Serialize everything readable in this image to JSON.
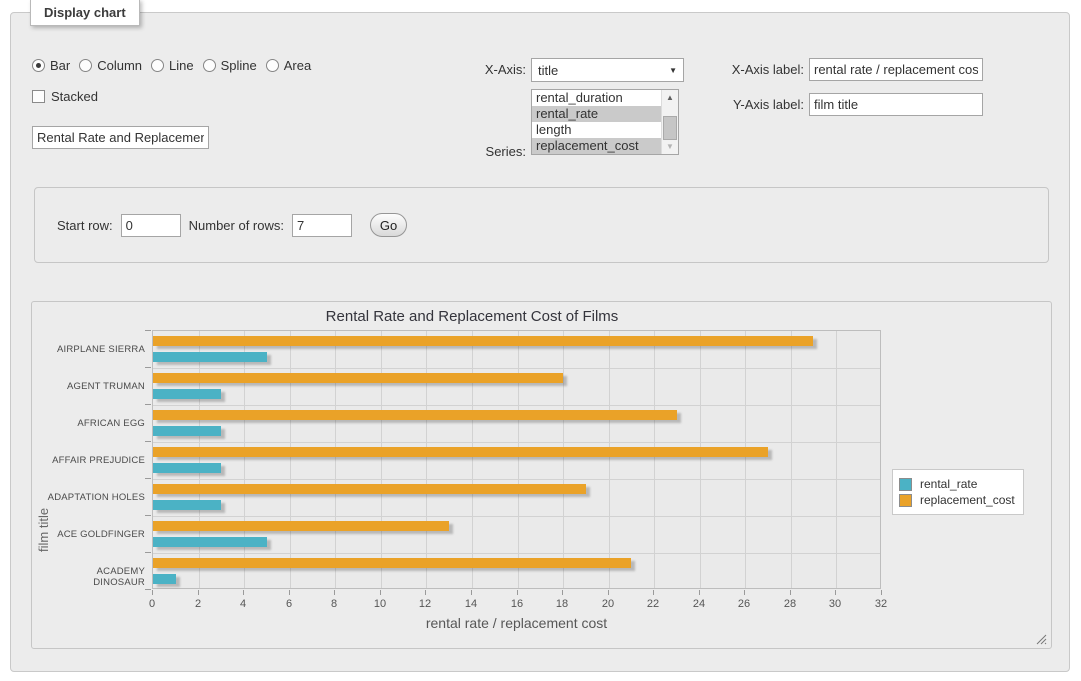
{
  "panel": {
    "legend_title": "Display chart"
  },
  "controls": {
    "chart_types": [
      {
        "label": "Bar",
        "selected": true
      },
      {
        "label": "Column",
        "selected": false
      },
      {
        "label": "Line",
        "selected": false
      },
      {
        "label": "Spline",
        "selected": false
      },
      {
        "label": "Area",
        "selected": false
      }
    ],
    "stacked": {
      "label": "Stacked",
      "checked": false
    },
    "chart_title_input": {
      "value": "Rental Rate and Replacement Cost of Films"
    },
    "x_axis": {
      "label": "X-Axis:",
      "selected": "title"
    },
    "series": {
      "label": "Series:",
      "options": [
        {
          "label": "rental_duration",
          "selected": false
        },
        {
          "label": "rental_rate",
          "selected": true
        },
        {
          "label": "length",
          "selected": false
        },
        {
          "label": "replacement_cost",
          "selected": true
        }
      ]
    },
    "x_axis_label_field": {
      "label": "X-Axis label:",
      "value": "rental rate / replacement cost"
    },
    "y_axis_label_field": {
      "label": "Y-Axis label:",
      "value": "film title"
    }
  },
  "row_controls": {
    "start_row": {
      "label": "Start row:",
      "value": "0"
    },
    "num_rows": {
      "label": "Number of rows:",
      "value": "7"
    },
    "go_button": "Go"
  },
  "chart_data": {
    "type": "bar",
    "orientation": "horizontal",
    "title": "Rental Rate and Replacement Cost of Films",
    "xlabel": "rental rate / replacement cost",
    "ylabel": "film title",
    "categories": [
      "AIRPLANE SIERRA",
      "AGENT TRUMAN",
      "AFRICAN EGG",
      "AFFAIR PREJUDICE",
      "ADAPTATION HOLES",
      "ACE GOLDFINGER",
      "ACADEMY DINOSAUR"
    ],
    "series": [
      {
        "name": "rental_rate",
        "color": "#4bb2c5",
        "values": [
          4.99,
          2.99,
          2.99,
          2.99,
          2.99,
          4.99,
          0.99
        ]
      },
      {
        "name": "replacement_cost",
        "color": "#eaa228",
        "values": [
          28.99,
          17.99,
          22.99,
          26.99,
          18.99,
          12.99,
          20.99
        ]
      }
    ],
    "xlim": [
      0,
      32
    ],
    "xticks": [
      0,
      2,
      4,
      6,
      8,
      10,
      12,
      14,
      16,
      18,
      20,
      22,
      24,
      26,
      28,
      30,
      32
    ],
    "grid": true,
    "legend_position": "right"
  }
}
